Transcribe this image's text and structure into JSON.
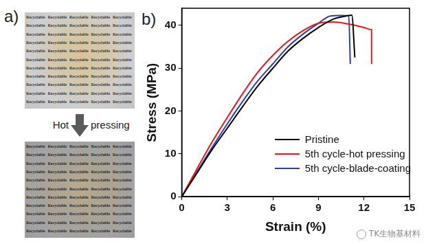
{
  "panel_a": {
    "label": "a)",
    "photo_text": "Recyclable",
    "arrow_label_left": "Hot",
    "arrow_label_right": "pressing"
  },
  "panel_b": {
    "label": "b)"
  },
  "watermark": "TK生物基材料",
  "chart_data": {
    "type": "line",
    "x_label": "Strain (%)",
    "y_label": "Stress (MPa)",
    "xlim": [
      0,
      15
    ],
    "xticks": [
      0,
      3,
      6,
      9,
      12,
      15
    ],
    "ylim": [
      0,
      44
    ],
    "yticks": [
      0,
      10,
      20,
      30,
      40
    ],
    "grid": false,
    "legend": "lower right",
    "series": [
      {
        "name": "Pristine",
        "color": "#000000",
        "line_style": "solid",
        "marker": "none",
        "x": [
          0,
          1,
          2,
          3,
          4,
          5,
          6,
          7,
          8,
          9,
          10,
          11,
          11.2,
          11.4
        ],
        "values": [
          0,
          5.5,
          11,
          16,
          21,
          25.8,
          30,
          34,
          37,
          39.5,
          41.5,
          42.3,
          42.4,
          32.5
        ]
      },
      {
        "name": "5th cycle-hot pressing",
        "color": "#e8161b",
        "line_style": "solid",
        "marker": "none",
        "x": [
          0,
          1,
          2,
          3,
          4,
          5,
          6,
          7,
          8,
          9,
          10,
          11,
          12,
          12.5,
          12.5
        ],
        "values": [
          0,
          6.5,
          12.8,
          18.5,
          24,
          29,
          33,
          36.3,
          38.8,
          40.5,
          40.8,
          40.3,
          39.5,
          39,
          31
        ]
      },
      {
        "name": "5th cycle-blade-coating",
        "color": "#2b3fa8",
        "line_style": "solid",
        "marker": "none",
        "x": [
          0,
          1,
          2,
          3,
          4,
          5,
          6,
          7,
          8,
          9,
          9.8,
          10.5,
          11,
          11.1
        ],
        "values": [
          0,
          5.8,
          11.5,
          17,
          22.2,
          27,
          31,
          35,
          38,
          40.5,
          42.2,
          42.3,
          42.2,
          31
        ]
      }
    ]
  }
}
